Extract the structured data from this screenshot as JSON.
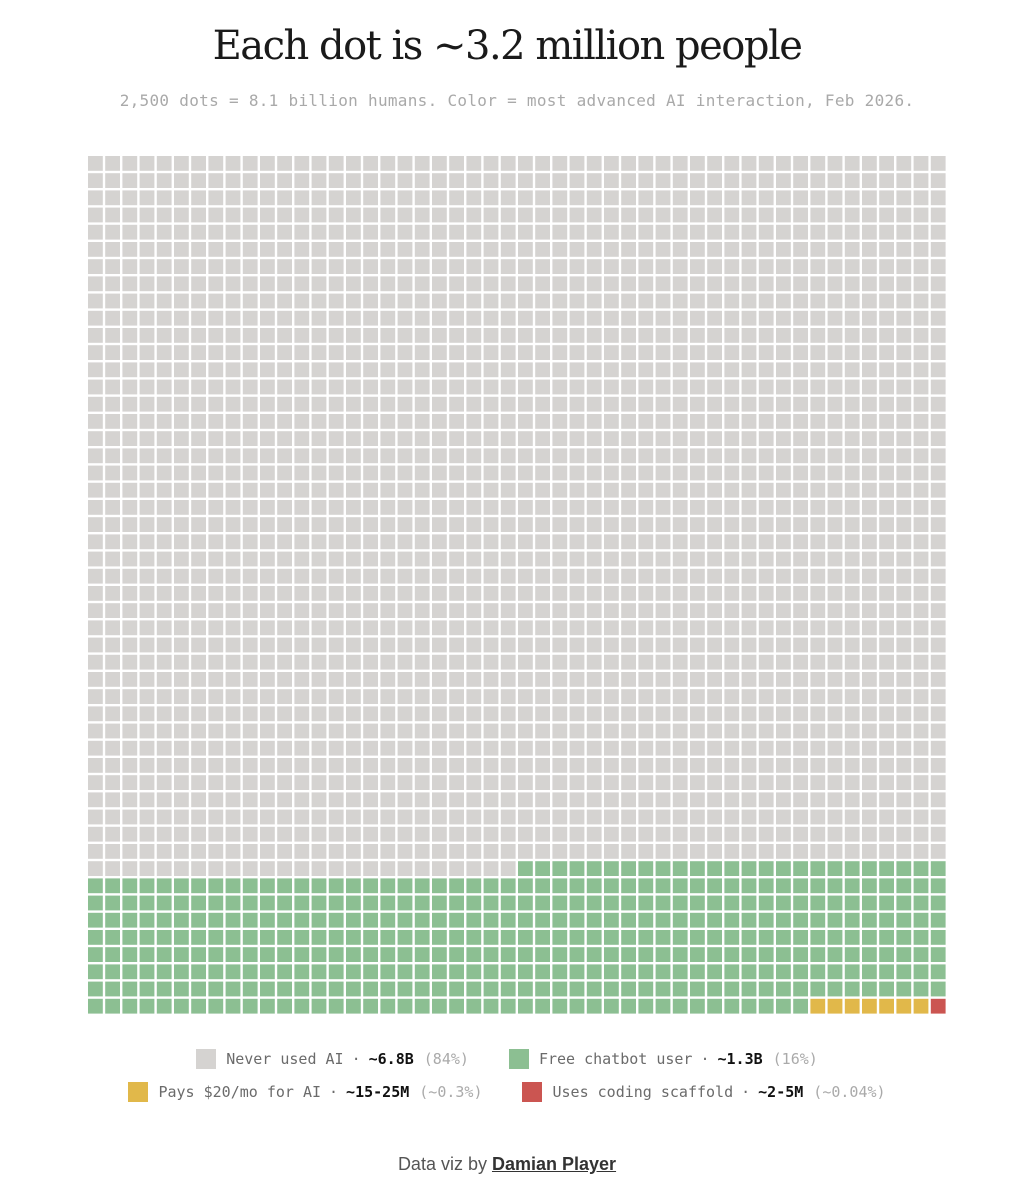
{
  "title": "Each dot is ~3.2 million people",
  "subtitle": "2,500 dots = 8.1 billion humans. Color = most advanced AI interaction, Feb 2026.",
  "chart_data": {
    "type": "waffle",
    "grid": {
      "rows": 50,
      "cols": 50
    },
    "fill_order": "row-major from top-left; last category ends at bottom-right",
    "categories": [
      {
        "key": "never",
        "label": "Never used AI",
        "value_text": "~6.8B",
        "pct_text": "(84%)",
        "dots": 2075,
        "color": "#d5d3d1"
      },
      {
        "key": "free",
        "label": "Free chatbot user",
        "value_text": "~1.3B",
        "pct_text": "(16%)",
        "dots": 417,
        "color": "#8cbf92"
      },
      {
        "key": "paid",
        "label": "Pays $20/mo for AI",
        "value_text": "~15-25M",
        "pct_text": "(~0.3%)",
        "dots": 7,
        "color": "#e1b84a"
      },
      {
        "key": "coding",
        "label": "Uses coding scaffold",
        "value_text": "~2-5M",
        "pct_text": "(~0.04%)",
        "dots": 1,
        "color": "#cb5551"
      }
    ]
  },
  "legend": {
    "separator": "·"
  },
  "credit": {
    "prefix": "Data viz by",
    "author": "Damian Player"
  }
}
